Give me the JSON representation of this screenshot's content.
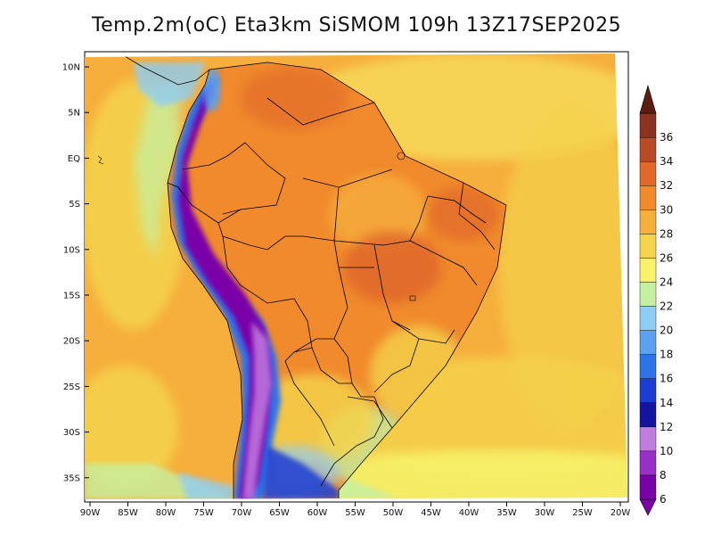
{
  "title": "Temp.2m(oC) Eta3km SiSMOM 109h 13Z17SEP2025",
  "map": {
    "variable": "2 m temperature",
    "units": "oC",
    "lat_labels": [
      "10N",
      "5N",
      "EQ",
      "5S",
      "10S",
      "15S",
      "20S",
      "25S",
      "30S",
      "35S"
    ],
    "lon_labels": [
      "90W",
      "85W",
      "80W",
      "75W",
      "70W",
      "65W",
      "60W",
      "55W",
      "50W",
      "45W",
      "40W",
      "35W",
      "30W",
      "25W",
      "20W"
    ]
  },
  "colorbar": {
    "levels": [
      "6",
      "8",
      "10",
      "12",
      "14",
      "16",
      "18",
      "20",
      "22",
      "24",
      "26",
      "28",
      "30",
      "32",
      "34",
      "36"
    ],
    "colors": [
      "#7a00a8",
      "#9a2fc8",
      "#c07be0",
      "#1414a0",
      "#1c3cd2",
      "#2e73e8",
      "#5aa2f0",
      "#8ecdf5",
      "#c6f0a0",
      "#f7f26a",
      "#f4d24c",
      "#f6ae3c",
      "#f08a2c",
      "#e0682a",
      "#b84a28",
      "#8c3220",
      "#5c1e10"
    ]
  }
}
